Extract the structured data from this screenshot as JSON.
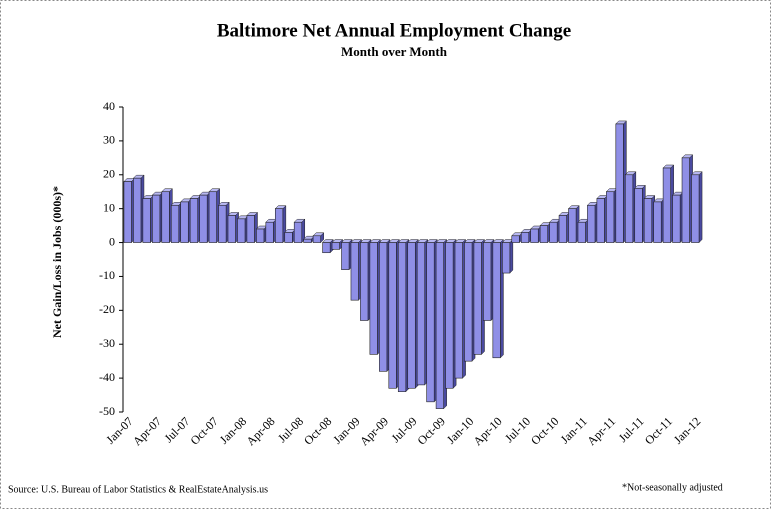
{
  "chart_data": {
    "type": "bar",
    "title": "Baltimore Net Annual Employment Change",
    "subtitle": "Month over Month",
    "ylabel": "Net Gain/Loss in Jobs (000s)*",
    "source": "Source: U.S. Bureau of Labor Statistics & RealEstateAnalysis.us",
    "note": "*Not-seasonally adjusted",
    "color": "#8f8fe6",
    "categories": [
      "Jan-07",
      null,
      null,
      "Apr-07",
      null,
      null,
      "Jul-07",
      null,
      null,
      "Oct-07",
      null,
      null,
      "Jan-08",
      null,
      null,
      "Apr-08",
      null,
      null,
      "Jul-08",
      null,
      null,
      "Oct-08",
      null,
      null,
      "Jan-09",
      null,
      null,
      "Apr-09",
      null,
      null,
      "Jul-09",
      null,
      null,
      "Oct-09",
      null,
      null,
      "Jan-10",
      null,
      null,
      "Apr-10",
      null,
      null,
      "Jul-10",
      null,
      null,
      "Oct-10",
      null,
      null,
      "Jan-11",
      null,
      null,
      "Apr-11",
      null,
      null,
      "Jul-11",
      null,
      null,
      "Oct-11",
      null,
      null,
      "Jan-12"
    ],
    "values": [
      18,
      19,
      13,
      14,
      15,
      11,
      12,
      13,
      14,
      15,
      11,
      8,
      7,
      8,
      4,
      6,
      10,
      3,
      6,
      1,
      2,
      -3,
      -2,
      -8,
      -17,
      -23,
      -33,
      -38,
      -43,
      -44,
      -43,
      -42,
      -47,
      -49,
      -43,
      -40,
      -35,
      -33,
      -23,
      -34,
      -9,
      2,
      3,
      4,
      5,
      6,
      8,
      10,
      6,
      11,
      13,
      15,
      35,
      20,
      16,
      13,
      12,
      22,
      14,
      25,
      20
    ],
    "ylim": [
      -50,
      40
    ],
    "yticks": [
      -50,
      -40,
      -30,
      -20,
      -10,
      0,
      10,
      20,
      30,
      40
    ],
    "grid": false
  }
}
